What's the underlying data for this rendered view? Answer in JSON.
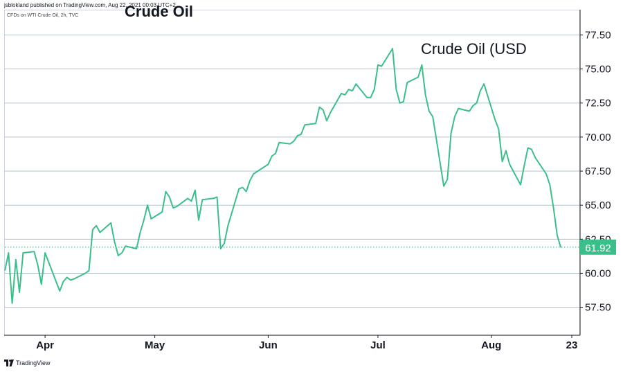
{
  "header": {
    "publisher_line": "jsblokland published on TradingView.com, Aug 22, 2021 00:03 UTC+2",
    "symbol_line": "CFDs on WTI Crude Oil, 2h, TVC",
    "title": "Crude Oil",
    "inner_title": "Crude Oil (USD"
  },
  "footer": {
    "brand": "TradingView",
    "logo_icon": "tradingview-logo-icon"
  },
  "colors": {
    "line": "#3bbf8a",
    "price_tag": "#3bbf8a",
    "grid": "#b2c3cc",
    "axis_text": "#131722"
  },
  "chart_data": {
    "type": "line",
    "title": "Crude Oil (USD",
    "x_tick_labels": [
      "Apr",
      "May",
      "Jun",
      "Jul",
      "Aug",
      "23"
    ],
    "y_tick_labels": [
      "57.50",
      "60.00",
      "62.50",
      "65.00",
      "67.50",
      "70.00",
      "72.50",
      "75.00",
      "77.50"
    ],
    "y_ticks": [
      57.5,
      60,
      62.5,
      65,
      67.5,
      70,
      72.5,
      75,
      77.5
    ],
    "ylim": [
      55.5,
      79.3
    ],
    "xlim": [
      "2021-03-21",
      "2021-08-23"
    ],
    "last_value_label": "61.92",
    "last_value": 61.92,
    "grid": "horizontal",
    "series": [
      {
        "x": [
          "2021-03-21",
          "2021-03-22",
          "2021-03-23",
          "2021-03-24",
          "2021-03-25",
          "2021-03-26",
          "2021-03-29",
          "2021-03-30",
          "2021-03-31",
          "2021-04-01",
          "2021-04-05",
          "2021-04-06",
          "2021-04-07",
          "2021-04-08",
          "2021-04-09",
          "2021-04-12",
          "2021-04-13",
          "2021-04-14",
          "2021-04-15",
          "2021-04-16",
          "2021-04-19",
          "2021-04-20",
          "2021-04-21",
          "2021-04-22",
          "2021-04-23",
          "2021-04-26",
          "2021-04-27",
          "2021-04-28",
          "2021-04-29",
          "2021-04-30",
          "2021-05-03",
          "2021-05-04",
          "2021-05-05",
          "2021-05-06",
          "2021-05-07",
          "2021-05-10",
          "2021-05-11",
          "2021-05-12",
          "2021-05-13",
          "2021-05-14",
          "2021-05-17",
          "2021-05-18",
          "2021-05-19",
          "2021-05-20",
          "2021-05-21",
          "2021-05-24",
          "2021-05-25",
          "2021-05-26",
          "2021-05-27",
          "2021-05-28",
          "2021-06-01",
          "2021-06-02",
          "2021-06-03",
          "2021-06-04",
          "2021-06-07",
          "2021-06-08",
          "2021-06-09",
          "2021-06-10",
          "2021-06-11",
          "2021-06-14",
          "2021-06-15",
          "2021-06-16",
          "2021-06-17",
          "2021-06-18",
          "2021-06-21",
          "2021-06-22",
          "2021-06-23",
          "2021-06-24",
          "2021-06-25",
          "2021-06-28",
          "2021-06-29",
          "2021-06-30",
          "2021-07-01",
          "2021-07-02",
          "2021-07-05",
          "2021-07-06",
          "2021-07-07",
          "2021-07-08",
          "2021-07-09",
          "2021-07-12",
          "2021-07-13",
          "2021-07-14",
          "2021-07-15",
          "2021-07-16",
          "2021-07-19",
          "2021-07-20",
          "2021-07-21",
          "2021-07-22",
          "2021-07-23",
          "2021-07-26",
          "2021-07-27",
          "2021-07-28",
          "2021-07-29",
          "2021-07-30",
          "2021-08-02",
          "2021-08-03",
          "2021-08-04",
          "2021-08-05",
          "2021-08-06",
          "2021-08-09",
          "2021-08-10",
          "2021-08-11",
          "2021-08-12",
          "2021-08-13",
          "2021-08-16",
          "2021-08-17",
          "2021-08-18",
          "2021-08-19",
          "2021-08-20"
        ],
        "y": [
          60.2,
          61.5,
          57.8,
          61.0,
          58.6,
          61.5,
          61.6,
          60.6,
          59.2,
          61.5,
          58.7,
          59.4,
          59.7,
          59.5,
          59.6,
          60.0,
          60.2,
          63.2,
          63.5,
          63.0,
          63.7,
          62.3,
          61.3,
          61.5,
          62.0,
          61.8,
          63.0,
          63.9,
          65.0,
          64.0,
          64.5,
          66.0,
          65.6,
          64.8,
          64.9,
          65.5,
          65.3,
          66.1,
          63.9,
          65.4,
          65.5,
          65.6,
          61.8,
          62.2,
          63.5,
          66.2,
          66.3,
          66.0,
          66.8,
          67.3,
          68.0,
          68.6,
          68.8,
          69.6,
          69.5,
          69.7,
          70.1,
          70.2,
          70.9,
          71.0,
          72.2,
          72.0,
          71.2,
          71.8,
          73.2,
          73.1,
          73.5,
          73.4,
          73.9,
          72.9,
          72.9,
          73.5,
          75.3,
          75.2,
          76.5,
          73.5,
          72.5,
          72.6,
          74.0,
          74.4,
          75.3,
          73.1,
          71.9,
          71.5,
          66.4,
          66.9,
          70.3,
          71.5,
          72.1,
          71.9,
          72.3,
          72.5,
          73.4,
          73.9,
          71.3,
          70.6,
          68.2,
          69.0,
          68.0,
          66.5,
          67.9,
          69.2,
          69.1,
          68.5,
          67.3,
          66.5,
          64.8,
          62.8,
          61.9
        ]
      }
    ]
  }
}
